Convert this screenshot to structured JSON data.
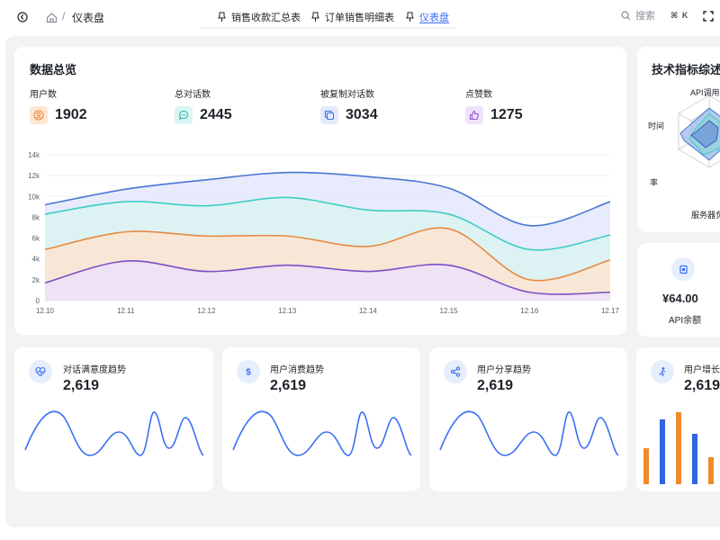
{
  "topbar": {
    "breadcrumb_sep": "/",
    "breadcrumb_current": "仪表盘",
    "tabs": [
      {
        "label": "销售收款汇总表",
        "active": false
      },
      {
        "label": "订单销售明细表",
        "active": false
      },
      {
        "label": "仪表盘",
        "active": true
      }
    ],
    "search_placeholder": "搜索",
    "search_shortcut": "⌘ K"
  },
  "colors": {
    "accent": "#3b6ff5",
    "page_bg": "#f2f3f5",
    "series_blue": "#4a76d4",
    "series_teal": "#3ecdc4",
    "series_orange": "#e58a42",
    "series_purple": "#7b4fc4"
  },
  "overview": {
    "title": "数据总览",
    "stats": [
      {
        "label": "用户数",
        "value": "1902",
        "icon": "user-circle-icon",
        "icon_bg": "#fde7cf",
        "icon_color": "#e58a42"
      },
      {
        "label": "总对话数",
        "value": "2445",
        "icon": "chat-bubble-icon",
        "icon_bg": "#daf5f2",
        "icon_color": "#2bb5aa"
      },
      {
        "label": "被复制对话数",
        "value": "3034",
        "icon": "copy-icon",
        "icon_bg": "#e3ebfb",
        "icon_color": "#3b6ff5"
      },
      {
        "label": "点赞数",
        "value": "1275",
        "icon": "thumbs-up-icon",
        "icon_bg": "#efe3fb",
        "icon_color": "#9a55d6"
      }
    ]
  },
  "chart_data": {
    "type": "area",
    "categories": [
      "12.10",
      "12.11",
      "12.12",
      "12.13",
      "12.14",
      "12.15",
      "12.16",
      "12.17"
    ],
    "ylim": [
      0,
      14000
    ],
    "yticks": [
      "0",
      "2k",
      "4k",
      "6k",
      "8k",
      "10k",
      "12k",
      "14k"
    ],
    "ytick_values": [
      0,
      2000,
      4000,
      6000,
      8000,
      10000,
      12000,
      14000
    ],
    "grid": true,
    "series": [
      {
        "color": "#4a76d4",
        "fill": "#e4e9fb",
        "values": [
          9200,
          10700,
          11600,
          12300,
          11900,
          10800,
          7200,
          9500
        ]
      },
      {
        "color": "#3ecdc4",
        "fill": "#dcf3f2",
        "values": [
          8300,
          9500,
          9100,
          9900,
          8700,
          8300,
          4900,
          6300
        ]
      },
      {
        "color": "#e58a42",
        "fill": "#fbe5d3",
        "values": [
          4900,
          6600,
          6200,
          6200,
          5200,
          6900,
          2000,
          3900
        ]
      },
      {
        "color": "#7b4fc4",
        "fill": "#ece1f7",
        "values": [
          1700,
          3800,
          2800,
          3400,
          2800,
          3400,
          800,
          800
        ]
      }
    ]
  },
  "tech": {
    "title": "技术指标综述",
    "radar_labels": [
      "API调用次",
      "时间",
      "率",
      "服务器负"
    ]
  },
  "balance": {
    "value": "¥64.00",
    "label": "API余额"
  },
  "mini_cards": [
    {
      "label": "对话满意度趋势",
      "value": "2,619",
      "icon": "heart-pulse-icon"
    },
    {
      "label": "用户消费趋势",
      "value": "2,619",
      "icon": "dollar-icon"
    },
    {
      "label": "用户分享趋势",
      "value": "2,619",
      "icon": "share-icon"
    },
    {
      "label": "用户增长趋",
      "value": "2,619",
      "icon": "user-growth-icon"
    }
  ]
}
